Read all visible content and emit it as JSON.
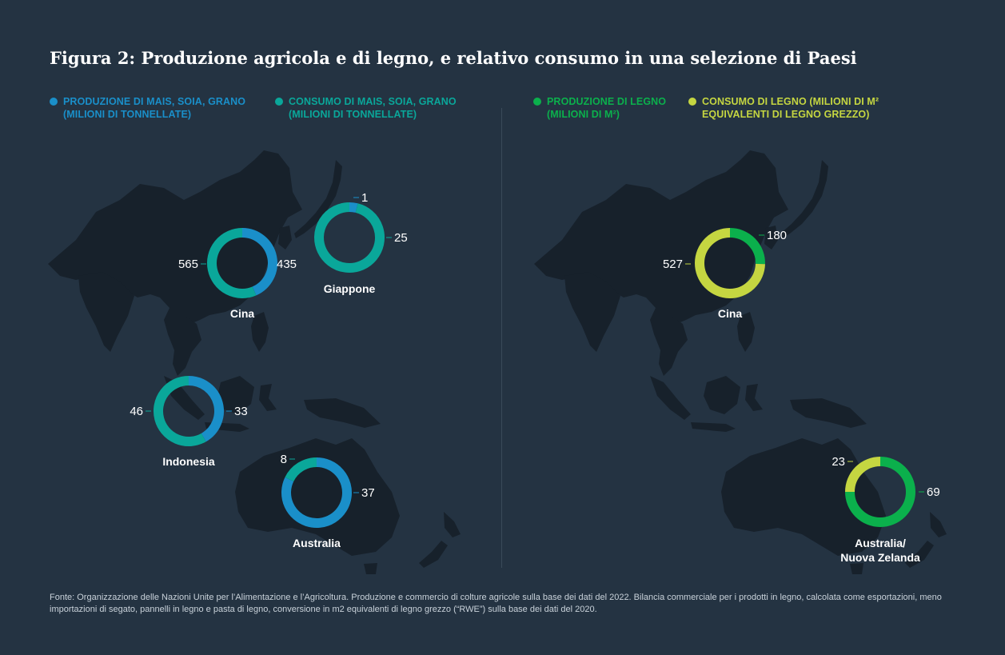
{
  "title": "Figura 2: Produzione agricola e di legno, e relativo consumo in una selezione di Paesi",
  "colors": {
    "background": "#243342",
    "land": "#17212b",
    "crop_production": "#1a8fc9",
    "crop_consumption": "#0aa79a",
    "wood_production": "#0bb04c",
    "wood_consumption": "#c5d641"
  },
  "legend": {
    "crop_production": [
      "PRODUZIONE DI MAIS, SOIA, GRANO",
      "(MILIONI DI TONNELLATE)"
    ],
    "crop_consumption": [
      "CONSUMO DI MAIS, SOIA, GRANO",
      "(MILIONI DI TONNELLATE)"
    ],
    "wood_production": [
      "PRODUZIONE DI LEGNO",
      "(MILIONI DI M²)"
    ],
    "wood_consumption": [
      "CONSUMO DI LEGNO (MILIONI DI M²",
      "EQUIVALENTI DI LEGNO GREZZO)"
    ]
  },
  "chart_data": [
    {
      "type": "pie",
      "panel": "crops",
      "title": "",
      "series_names": [
        "PRODUZIONE DI MAIS, SOIA, GRANO (MILIONI DI TONNELLATE)",
        "CONSUMO DI MAIS, SOIA, GRANO (MILIONI DI TONNELLATE)"
      ],
      "countries": [
        {
          "name": [
            "Cina"
          ],
          "production": 435,
          "consumption": 565
        },
        {
          "name": [
            "Giappone"
          ],
          "production": 1,
          "consumption": 25
        },
        {
          "name": [
            "Indonesia"
          ],
          "production": 33,
          "consumption": 46
        },
        {
          "name": [
            "Australia"
          ],
          "production": 37,
          "consumption": 8
        }
      ]
    },
    {
      "type": "pie",
      "panel": "wood",
      "title": "",
      "series_names": [
        "PRODUZIONE DI LEGNO (MILIONI DI M²)",
        "CONSUMO DI LEGNO (MILIONI DI M² EQUIVALENTI DI LEGNO GREZZO)"
      ],
      "countries": [
        {
          "name": [
            "Cina"
          ],
          "production": 180,
          "consumption": 527
        },
        {
          "name": [
            "Australia/",
            "Nuova Zelanda"
          ],
          "production": 69,
          "consumption": 23
        }
      ]
    }
  ],
  "footnote": "Fonte: Organizzazione delle Nazioni Unite per l’Alimentazione e l’Agricoltura. Produzione e commercio di colture agricole sulla base dei dati del 2022. Bilancia commerciale per i prodotti in legno, calcolata come esportazioni, meno importazioni di segato, pannelli in legno e pasta di legno, conversione in m2 equivalenti di legno grezzo (“RWE”) sulla base dei dati del 2020."
}
